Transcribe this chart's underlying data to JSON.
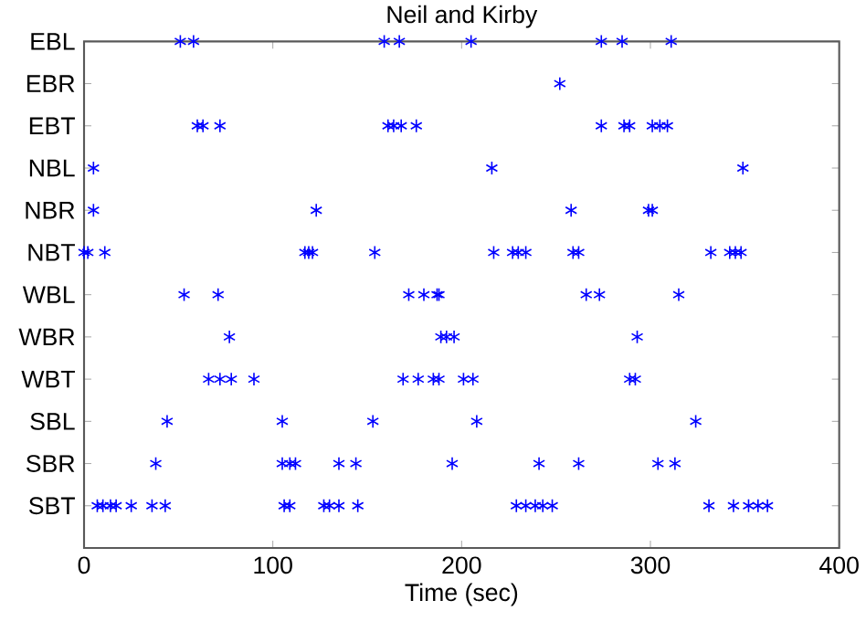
{
  "chart_data": {
    "type": "scatter",
    "title": "Neil and Kirby",
    "xlabel": "Time (sec)",
    "orientation": "horizontal",
    "categories": [
      "EBL",
      "EBR",
      "EBT",
      "NBL",
      "NBR",
      "NBT",
      "WBL",
      "WBR",
      "WBT",
      "SBL",
      "SBR",
      "SBT"
    ],
    "xlim": [
      0,
      400
    ],
    "xticks": [
      0,
      100,
      200,
      300,
      400
    ],
    "marker": "cross",
    "grid": false,
    "series": [
      {
        "color": "#0000ff",
        "values": [
          51,
          252,
          60,
          5,
          5,
          0,
          53,
          77,
          66,
          44,
          38,
          7
        ]
      },
      {
        "color": "#0000ff",
        "values": [
          58,
          null,
          63,
          216,
          123,
          2,
          71,
          189,
          72,
          105,
          105,
          10
        ]
      },
      {
        "color": "#0000ff",
        "values": [
          159,
          null,
          72,
          349,
          258,
          11,
          172,
          192,
          78,
          153,
          109,
          14
        ]
      },
      {
        "color": "#0000ff",
        "values": [
          167,
          null,
          161,
          null,
          299,
          117,
          180,
          196,
          90,
          208,
          112,
          17
        ]
      },
      {
        "color": "#0000ff",
        "values": [
          205,
          null,
          164,
          null,
          301,
          119,
          187,
          293,
          169,
          324,
          135,
          25
        ]
      },
      {
        "color": "#0000ff",
        "values": [
          274,
          null,
          168,
          null,
          null,
          121,
          188,
          null,
          177,
          null,
          144,
          36
        ]
      },
      {
        "color": "#0000ff",
        "values": [
          285,
          null,
          176,
          null,
          null,
          154,
          266,
          null,
          185,
          null,
          195,
          43
        ]
      },
      {
        "color": "#0000ff",
        "values": [
          311,
          null,
          274,
          null,
          null,
          217,
          273,
          null,
          188,
          null,
          241,
          106
        ]
      },
      {
        "color": "#0000ff",
        "values": [
          null,
          null,
          286,
          null,
          null,
          227,
          315,
          null,
          201,
          null,
          262,
          109
        ]
      },
      {
        "color": "#0000ff",
        "values": [
          null,
          null,
          289,
          null,
          null,
          230,
          null,
          null,
          206,
          null,
          304,
          127
        ]
      },
      {
        "color": "#0000ff",
        "values": [
          null,
          null,
          301,
          null,
          null,
          234,
          null,
          null,
          289,
          null,
          313,
          130
        ]
      },
      {
        "color": "#0000ff",
        "values": [
          null,
          null,
          305,
          null,
          null,
          259,
          null,
          null,
          292,
          null,
          null,
          135
        ]
      },
      {
        "color": "#0000ff",
        "values": [
          null,
          null,
          309,
          null,
          null,
          262,
          null,
          null,
          null,
          null,
          null,
          145
        ]
      },
      {
        "color": "#0000ff",
        "values": [
          null,
          null,
          null,
          null,
          null,
          332,
          null,
          null,
          null,
          null,
          null,
          229
        ]
      },
      {
        "color": "#0000ff",
        "values": [
          null,
          null,
          null,
          null,
          null,
          342,
          null,
          null,
          null,
          null,
          null,
          234
        ]
      },
      {
        "color": "#0000ff",
        "values": [
          null,
          null,
          null,
          null,
          null,
          345,
          null,
          null,
          null,
          null,
          null,
          239
        ]
      },
      {
        "color": "#0000ff",
        "values": [
          null,
          null,
          null,
          null,
          null,
          348,
          null,
          null,
          null,
          null,
          null,
          243
        ]
      },
      {
        "color": "#0000ff",
        "values": [
          null,
          null,
          null,
          null,
          null,
          null,
          null,
          null,
          null,
          null,
          null,
          248
        ]
      },
      {
        "color": "#0000ff",
        "values": [
          null,
          null,
          null,
          null,
          null,
          null,
          null,
          null,
          null,
          null,
          null,
          331
        ]
      },
      {
        "color": "#0000ff",
        "values": [
          null,
          null,
          null,
          null,
          null,
          null,
          null,
          null,
          null,
          null,
          null,
          344
        ]
      },
      {
        "color": "#0000ff",
        "values": [
          null,
          null,
          null,
          null,
          null,
          null,
          null,
          null,
          null,
          null,
          null,
          352
        ]
      },
      {
        "color": "#0000ff",
        "values": [
          null,
          null,
          null,
          null,
          null,
          null,
          null,
          null,
          null,
          null,
          null,
          357
        ]
      },
      {
        "color": "#0000ff",
        "values": [
          null,
          null,
          null,
          null,
          null,
          null,
          null,
          null,
          null,
          null,
          null,
          362
        ]
      }
    ]
  }
}
